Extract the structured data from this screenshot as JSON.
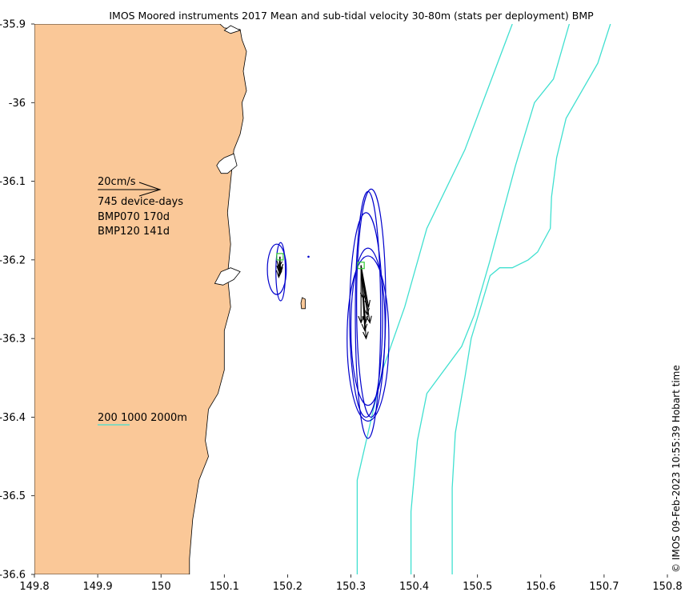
{
  "chart_data": {
    "type": "map",
    "title": "IMOS Moored instruments 2017 Mean and sub-tidal velocity 30-80m (stats per deployment) BMP",
    "xlim": [
      149.8,
      150.8
    ],
    "ylim": [
      -36.6,
      -35.9
    ],
    "x_ticks": [
      149.8,
      149.9,
      150.0,
      150.1,
      150.2,
      150.3,
      150.4,
      150.5,
      150.6,
      150.7,
      150.8
    ],
    "x_tick_labels": [
      "149.8",
      "149.9",
      "150",
      "150.1",
      "150.2",
      "150.3",
      "150.4",
      "150.5",
      "150.6",
      "150.7",
      "150.8"
    ],
    "y_ticks": [
      -35.9,
      -36.0,
      -36.1,
      -36.2,
      -36.3,
      -36.4,
      -36.5,
      -36.6
    ],
    "y_tick_labels": [
      "-35.9",
      "-36",
      "-36.1",
      "-36.2",
      "-36.3",
      "-36.4",
      "-36.5",
      "-36.6"
    ],
    "timestamp": "© IMOS 09-Feb-2023 10:55:39 Hobart time",
    "legend": {
      "scale_label": "20cm/s",
      "device_days": "745 device-days",
      "deployments": [
        "BMP070 170d",
        "BMP120 141d"
      ],
      "isobath_label": "200 1000 2000m"
    },
    "colors": {
      "land": "#fac898",
      "isobath": "#40e0d0",
      "ellipse": "#0000cc",
      "arrow": "#000000",
      "mooring": "#33cc33"
    },
    "coastline": [
      [
        149.8,
        -35.9
      ],
      [
        150.093,
        -35.9
      ],
      [
        150.1,
        -35.905
      ],
      [
        150.125,
        -35.907
      ],
      [
        150.128,
        -35.92
      ],
      [
        150.135,
        -35.935
      ],
      [
        150.13,
        -35.96
      ],
      [
        150.135,
        -35.985
      ],
      [
        150.128,
        -36.0
      ],
      [
        150.13,
        -36.02
      ],
      [
        150.125,
        -36.04
      ],
      [
        150.115,
        -36.06
      ],
      [
        150.11,
        -36.1
      ],
      [
        150.105,
        -36.14
      ],
      [
        150.11,
        -36.18
      ],
      [
        150.105,
        -36.22
      ],
      [
        150.11,
        -36.26
      ],
      [
        150.1,
        -36.29
      ],
      [
        150.1,
        -36.34
      ],
      [
        150.09,
        -36.37
      ],
      [
        150.075,
        -36.39
      ],
      [
        150.07,
        -36.43
      ],
      [
        150.075,
        -36.45
      ],
      [
        150.06,
        -36.48
      ],
      [
        150.05,
        -36.53
      ],
      [
        150.045,
        -36.58
      ],
      [
        150.045,
        -36.6
      ],
      [
        149.8,
        -36.6
      ]
    ],
    "islands": [
      [
        [
          150.223,
          -36.248
        ],
        [
          150.228,
          -36.25
        ],
        [
          150.228,
          -36.262
        ],
        [
          150.222,
          -36.262
        ],
        [
          150.221,
          -36.255
        ]
      ]
    ],
    "inlets": [
      [
        [
          150.1,
          -35.908
        ],
        [
          150.11,
          -35.902
        ],
        [
          150.125,
          -35.908
        ],
        [
          150.11,
          -35.912
        ]
      ],
      [
        [
          150.1,
          -36.07
        ],
        [
          150.115,
          -36.065
        ],
        [
          150.12,
          -36.08
        ],
        [
          150.105,
          -36.09
        ],
        [
          150.095,
          -36.09
        ],
        [
          150.088,
          -36.08
        ],
        [
          150.092,
          -36.075
        ]
      ],
      [
        [
          150.095,
          -36.215
        ],
        [
          150.11,
          -36.21
        ],
        [
          150.125,
          -36.215
        ],
        [
          150.115,
          -36.225
        ],
        [
          150.098,
          -36.232
        ],
        [
          150.085,
          -36.23
        ]
      ]
    ],
    "isobaths": [
      {
        "depth": 200,
        "points": [
          [
            150.555,
            -35.9
          ],
          [
            150.48,
            -36.06
          ],
          [
            150.42,
            -36.16
          ],
          [
            150.385,
            -36.26
          ],
          [
            150.35,
            -36.34
          ],
          [
            150.33,
            -36.41
          ],
          [
            150.31,
            -36.48
          ],
          [
            150.31,
            -36.6
          ]
        ]
      },
      {
        "depth": 1000,
        "points": [
          [
            150.645,
            -35.9
          ],
          [
            150.62,
            -35.97
          ],
          [
            150.59,
            -36.0
          ],
          [
            150.56,
            -36.08
          ],
          [
            150.52,
            -36.2
          ],
          [
            150.495,
            -36.27
          ],
          [
            150.475,
            -36.31
          ],
          [
            150.42,
            -36.37
          ],
          [
            150.405,
            -36.43
          ],
          [
            150.395,
            -36.52
          ],
          [
            150.395,
            -36.6
          ]
        ]
      },
      {
        "depth": 2000,
        "points": [
          [
            150.71,
            -35.9
          ],
          [
            150.69,
            -35.95
          ],
          [
            150.64,
            -36.02
          ],
          [
            150.625,
            -36.07
          ],
          [
            150.617,
            -36.12
          ],
          [
            150.615,
            -36.16
          ],
          [
            150.595,
            -36.19
          ],
          [
            150.58,
            -36.2
          ],
          [
            150.555,
            -36.21
          ],
          [
            150.535,
            -36.21
          ],
          [
            150.52,
            -36.22
          ],
          [
            150.505,
            -36.26
          ],
          [
            150.49,
            -36.3
          ],
          [
            150.48,
            -36.35
          ],
          [
            150.465,
            -36.42
          ],
          [
            150.46,
            -36.49
          ],
          [
            150.46,
            -36.6
          ]
        ]
      }
    ],
    "moorings": [
      {
        "name": "BMP070",
        "lon": 150.188,
        "lat": -36.196,
        "ellipses": [
          {
            "cx": 150.189,
            "cy": -36.215,
            "rx": 0.0075,
            "ry": 0.037
          },
          {
            "cx": 150.183,
            "cy": -36.212,
            "rx": 0.015,
            "ry": 0.032
          }
        ],
        "arrows": [
          [
            150.186,
            -36.222
          ],
          [
            150.188,
            -36.218
          ],
          [
            150.189,
            -36.214
          ],
          [
            150.186,
            -36.21
          ]
        ],
        "mean_arrow": [
          150.187,
          -36.216
        ]
      },
      {
        "name": "BMP120",
        "lon": 150.316,
        "lat": -36.207,
        "ellipses": [
          {
            "cx": 150.327,
            "cy": -36.27,
            "rx": 0.02,
            "ry": 0.157
          },
          {
            "cx": 150.332,
            "cy": -36.255,
            "rx": 0.023,
            "ry": 0.145
          },
          {
            "cx": 150.324,
            "cy": -36.27,
            "rx": 0.026,
            "ry": 0.13
          },
          {
            "cx": 150.327,
            "cy": -36.285,
            "rx": 0.027,
            "ry": 0.1
          },
          {
            "cx": 150.327,
            "cy": -36.3,
            "rx": 0.033,
            "ry": 0.105
          }
        ],
        "arrows": [
          [
            150.32,
            -36.25
          ],
          [
            150.326,
            -36.27
          ],
          [
            150.33,
            -36.28
          ],
          [
            150.324,
            -36.3
          ],
          [
            150.316,
            -36.28
          ],
          [
            150.328,
            -36.26
          ],
          [
            150.322,
            -36.29
          ]
        ],
        "mean_arrow": [
          150.323,
          -36.28
        ]
      }
    ],
    "stray_point": [
      150.233,
      -36.196
    ]
  }
}
